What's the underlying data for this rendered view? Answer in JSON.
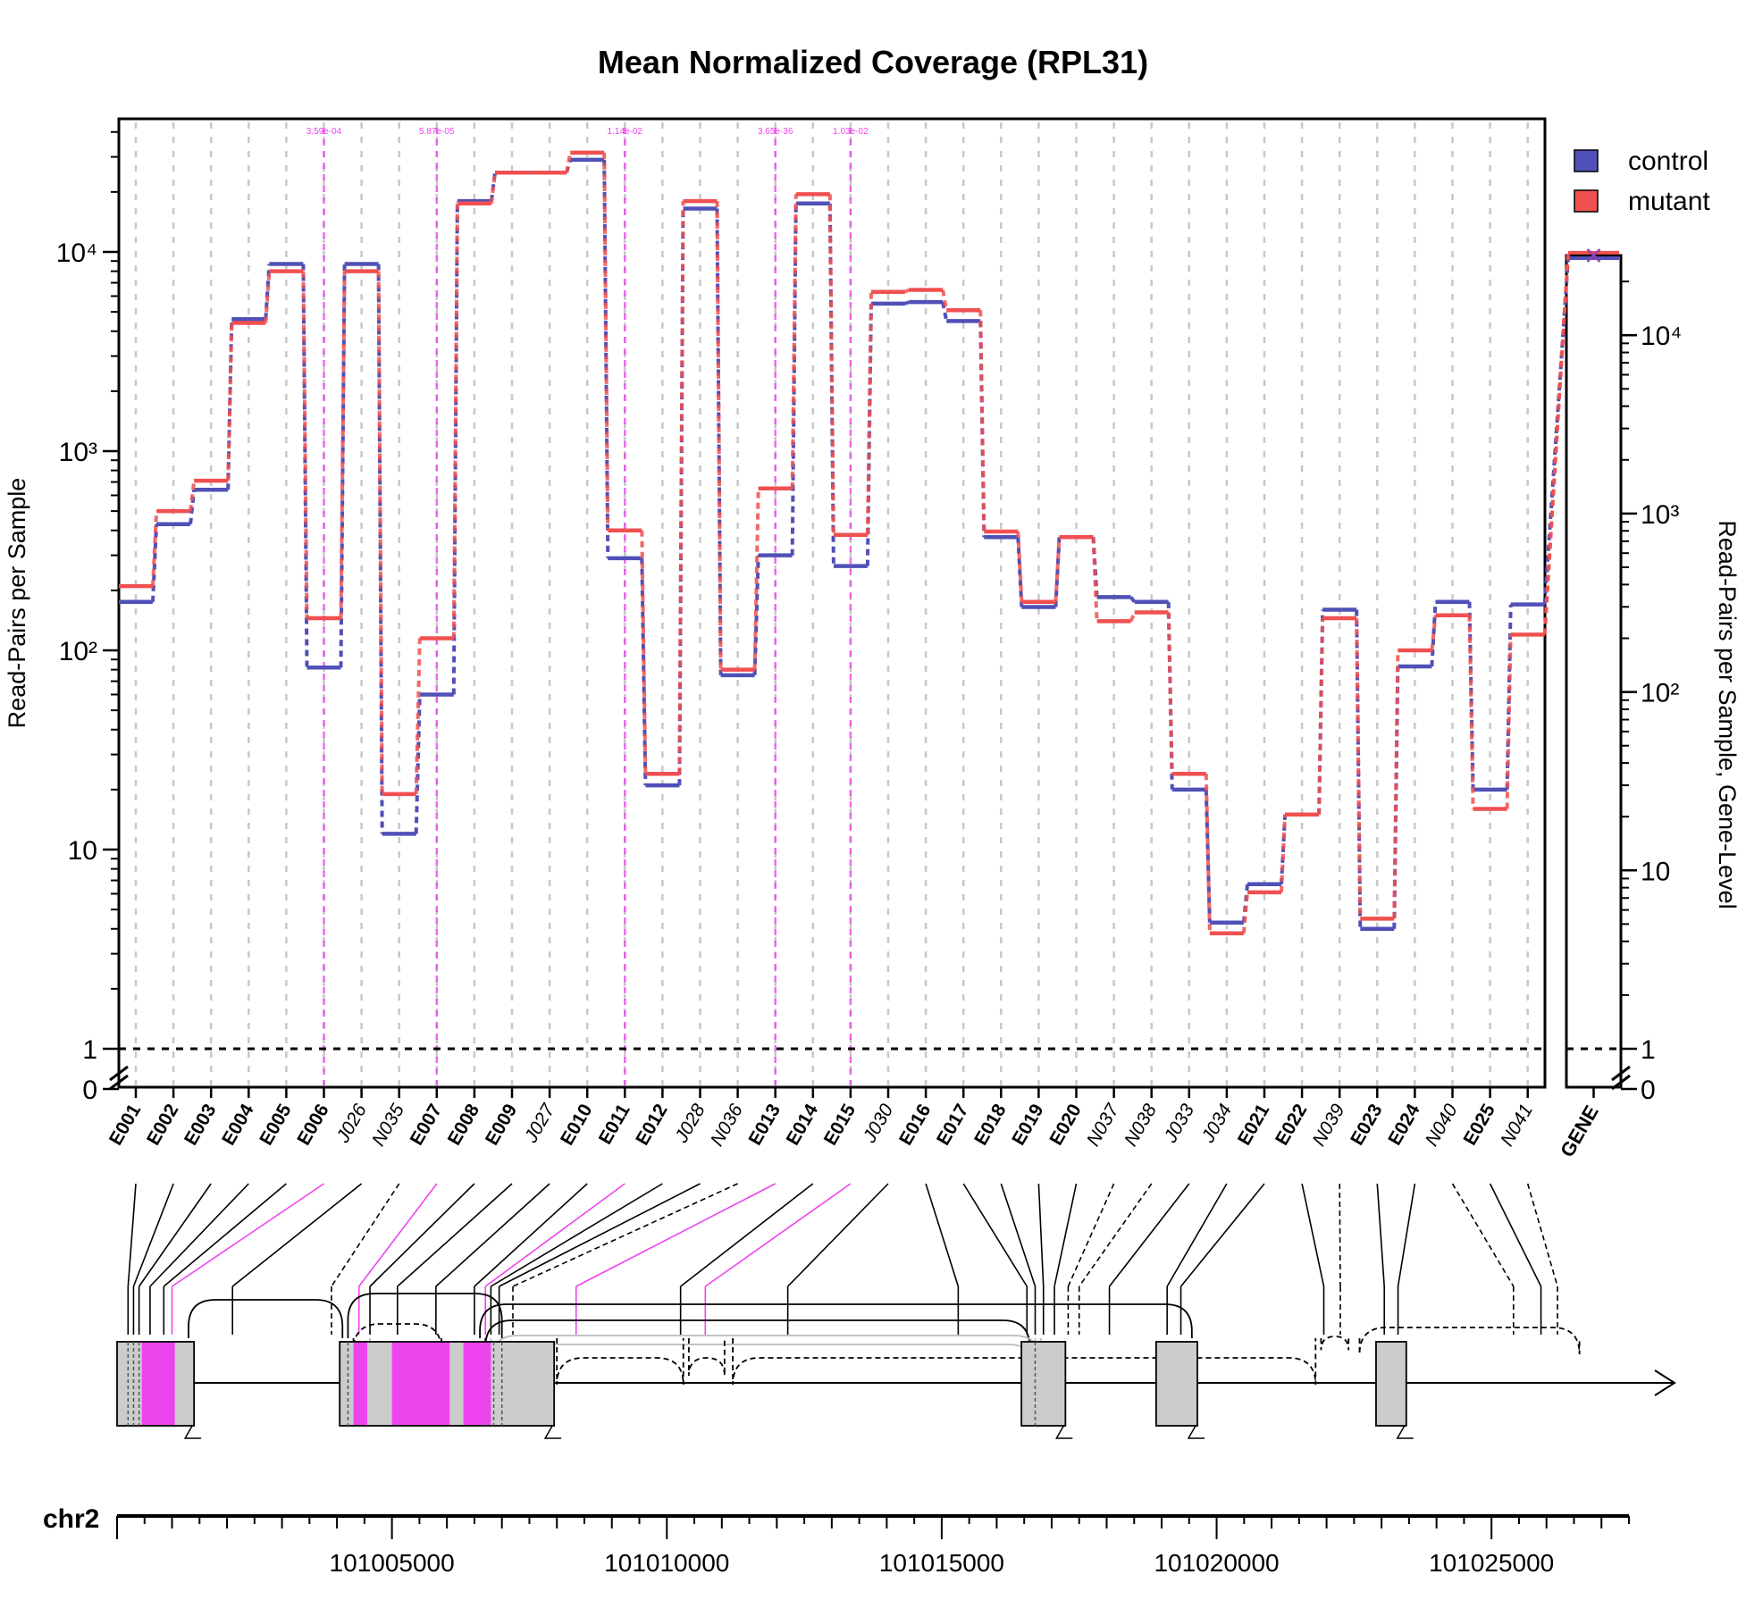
{
  "chart_data": {
    "type": "line",
    "title": "Mean Normalized Coverage (RPL31)",
    "ylabel": "Read-Pairs per Sample",
    "ylabel_right": "Read-Pairs per Sample, Gene-Level",
    "y_scale": "log",
    "y_tick_labels": [
      "0",
      "1",
      "10",
      "10²",
      "10³",
      "10⁴"
    ],
    "right_y_tick_labels": [
      "0",
      "1",
      "10",
      "10²",
      "10³",
      "10⁴"
    ],
    "legend": {
      "position": "top-right",
      "entries": [
        "control",
        "mutant"
      ]
    },
    "colors": {
      "control": "#5050b8",
      "mutant": "#f05050",
      "significant": "#ee44ee"
    },
    "features": [
      "E001",
      "E002",
      "E003",
      "E004",
      "E005",
      "E006",
      "J026",
      "N035",
      "E007",
      "E008",
      "E009",
      "J027",
      "E010",
      "E011",
      "E012",
      "J028",
      "N036",
      "E013",
      "E014",
      "E015",
      "J030",
      "E016",
      "E017",
      "E018",
      "E019",
      "E020",
      "N037",
      "N038",
      "J033",
      "J034",
      "E021",
      "E022",
      "N039",
      "E023",
      "E024",
      "N040",
      "E025",
      "N041"
    ],
    "significant_pvalues": [
      {
        "feature": "E006",
        "label": "3.59e-04"
      },
      {
        "feature": "E007",
        "label": "5.87e-05"
      },
      {
        "feature": "E011",
        "label": "1.14e-02"
      },
      {
        "feature": "E013",
        "label": "3.65e-36"
      },
      {
        "feature": "E015",
        "label": "1.03e-02"
      }
    ],
    "series": [
      {
        "name": "control",
        "values": [
          175,
          430,
          640,
          4600,
          8700,
          82,
          8700,
          12,
          60,
          18000,
          25000,
          25000,
          29000,
          290,
          21,
          16500,
          75,
          300,
          17500,
          265,
          5500,
          5600,
          4500,
          370,
          165,
          370,
          185,
          175,
          20,
          4.3,
          6.7,
          15,
          160,
          4.0,
          83,
          175,
          20,
          170
        ]
      },
      {
        "name": "mutant",
        "values": [
          210,
          500,
          710,
          4400,
          8000,
          145,
          8000,
          19,
          115,
          17500,
          25000,
          25000,
          31500,
          400,
          24,
          18000,
          80,
          650,
          19500,
          380,
          6300,
          6450,
          5100,
          395,
          175,
          370,
          140,
          155,
          24,
          3.8,
          6.1,
          15,
          145,
          4.5,
          100,
          150,
          16,
          120
        ]
      }
    ],
    "gene_level": {
      "label": "GENE",
      "control": 27000,
      "mutant": 29000
    },
    "genome": {
      "chromosome": "chr2",
      "axis_ticks": [
        "101005000",
        "101010000",
        "101015000",
        "101020000",
        "101025000"
      ]
    }
  }
}
